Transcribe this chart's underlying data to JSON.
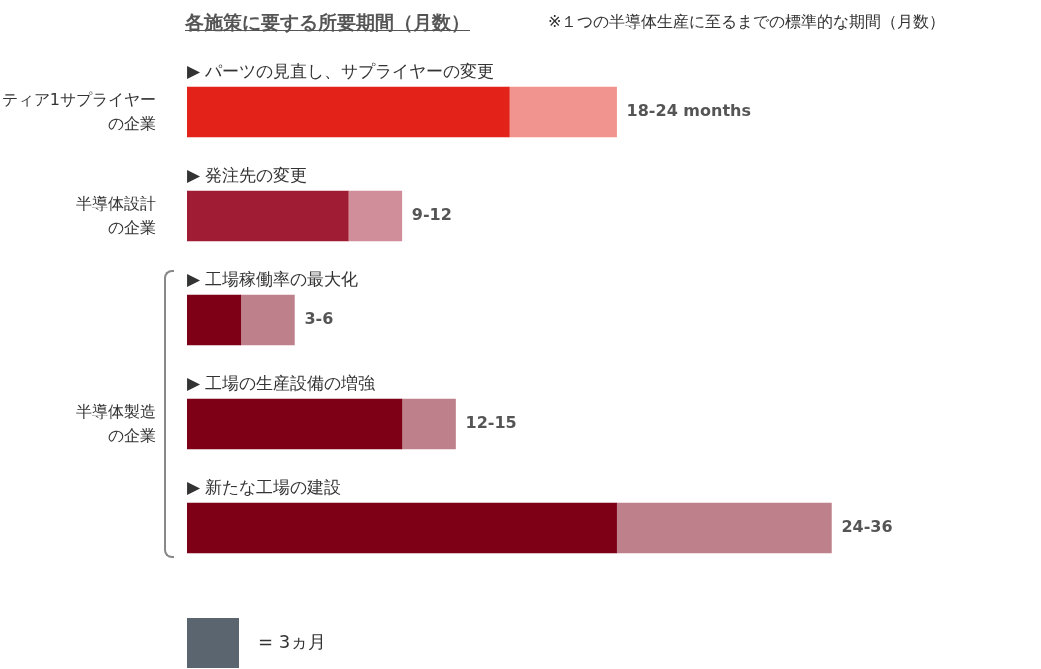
{
  "chart_data": {
    "type": "bar",
    "orientation": "horizontal",
    "stacked": true,
    "title": "各施策に要する所要期間（月数）",
    "subtitle": "※１つの半導体生産に至るまでの標準的な期間（月数）",
    "categories": [
      "▶ パーツの見直し、サプライヤーの変更",
      "▶ 発注先の変更",
      "▶ 工場稼働率の最大化",
      "▶ 工場の生産設備の増強",
      "▶ 新たな工場の建設"
    ],
    "series": [
      {
        "type": "bar",
        "colors": [
          "#e32219",
          "#a01c35",
          "#7d0016",
          "#7d0016",
          "#7d0016"
        ],
        "values": [
          18,
          9,
          3,
          12,
          24
        ]
      },
      {
        "type": "bar",
        "colors": [
          "#f19490",
          "#d08d9a",
          "#be808b",
          "#be808b",
          "#be808b"
        ],
        "values": [
          6,
          3,
          3,
          3,
          12
        ],
        "value_labels": [
          "18-24 months",
          "9-12",
          "3-6",
          "12-15",
          "24-36"
        ]
      }
    ],
    "legend": false,
    "annotations": [
      "ティア1サプライヤーの企業",
      "半導体設計の企業",
      "半導体製造の企業",
      "= 3ヵ月"
    ]
  }
}
